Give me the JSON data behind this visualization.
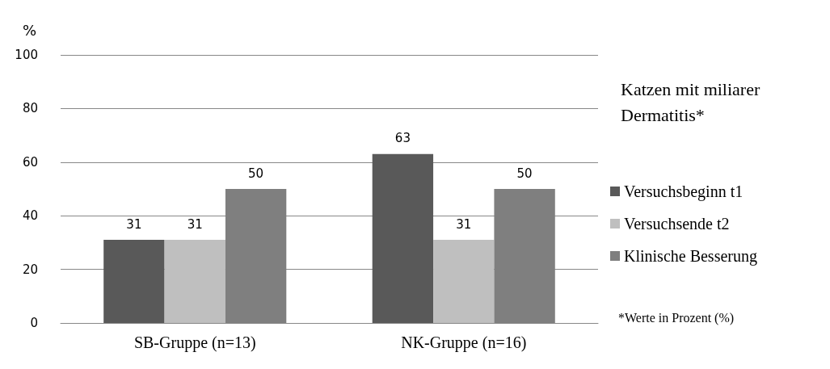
{
  "chart_data": {
    "type": "bar",
    "ylabel": "%",
    "legend_title": "Katzen mit miliarer Dermatitis*",
    "categories": [
      "SB-Gruppe (n=13)",
      "NK-Gruppe (n=16)"
    ],
    "series": [
      {
        "name": "Versuchsbeginn t1",
        "color": "#595959",
        "values": [
          31,
          63
        ]
      },
      {
        "name": "Versuchsende t2",
        "color": "#bfbfbf",
        "values": [
          31,
          31
        ]
      },
      {
        "name": "Klinische Besserung",
        "color": "#7f7f7f",
        "values": [
          50,
          50
        ]
      }
    ],
    "ylim": [
      0,
      100
    ],
    "yticks": [
      0,
      20,
      40,
      60,
      80,
      100
    ],
    "grid": "y",
    "legend": "right",
    "data_labels": true,
    "annotations": [
      "*Werte in Prozent (%)"
    ]
  }
}
